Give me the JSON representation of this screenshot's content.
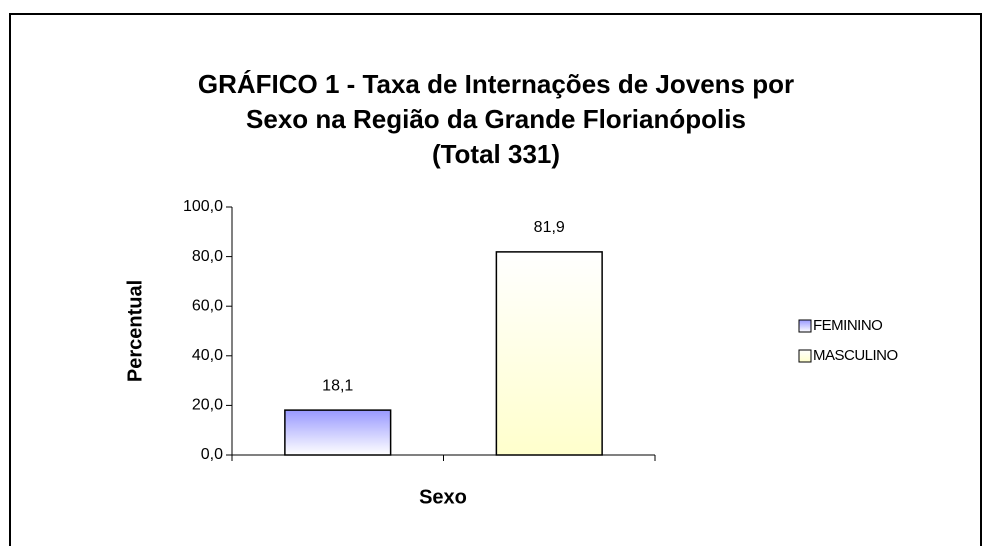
{
  "chart_data": {
    "type": "bar",
    "title": [
      "GRÁFICO 1 - Taxa de Internações  de Jovens por",
      "Sexo na Região da Grande Florianópolis",
      "(Total 331)"
    ],
    "x_label": "Sexo",
    "y_label": "Percentual",
    "categories": [
      "FEMININO",
      "MASCULINO"
    ],
    "values": [
      18.1,
      81.9
    ],
    "value_labels": [
      "18,1",
      "81,9"
    ],
    "colors": [
      "#9999ff",
      "#ffffcc"
    ],
    "ylim": [
      0,
      100
    ],
    "yticks": [
      {
        "value": 0,
        "label": "0,0"
      },
      {
        "value": 20,
        "label": "20,0"
      },
      {
        "value": 40,
        "label": "40,0"
      },
      {
        "value": 60,
        "label": "60,0"
      },
      {
        "value": 80,
        "label": "80,0"
      },
      {
        "value": 100,
        "label": "100,0"
      }
    ],
    "legend": "right"
  }
}
